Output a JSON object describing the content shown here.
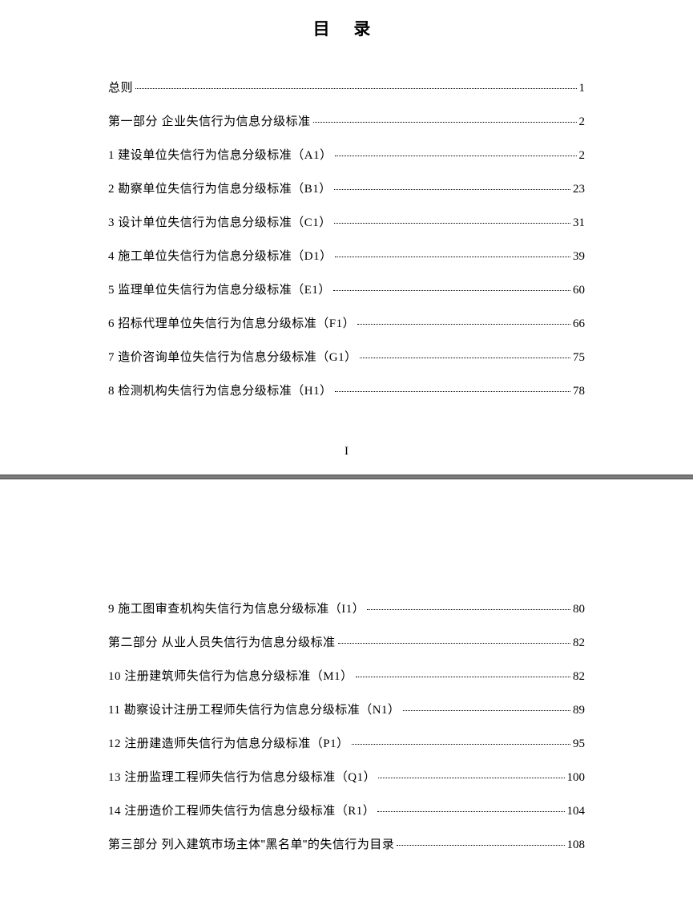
{
  "title": "目 录",
  "page_indicator": "I",
  "colors": {
    "background": "#ffffff",
    "text": "#000000",
    "divider": "#7c7c7c"
  },
  "typography": {
    "title_fontsize": 21,
    "body_fontsize": 15,
    "title_font": "SimHei",
    "body_font": "SimSun"
  },
  "toc_page1": [
    {
      "label": "总则",
      "page": "1",
      "is_section": false
    },
    {
      "label": "第一部分  企业失信行为信息分级标准",
      "page": "2",
      "is_section": true
    },
    {
      "label": "1  建设单位失信行为信息分级标准（A1）",
      "page": "2",
      "is_section": false
    },
    {
      "label": "2  勘察单位失信行为信息分级标准（B1）",
      "page": "23",
      "is_section": false
    },
    {
      "label": "3  设计单位失信行为信息分级标准（C1）",
      "page": "31",
      "is_section": false
    },
    {
      "label": "4  施工单位失信行为信息分级标准（D1）",
      "page": "39",
      "is_section": false
    },
    {
      "label": "5  监理单位失信行为信息分级标准（E1）",
      "page": "60",
      "is_section": false
    },
    {
      "label": "6  招标代理单位失信行为信息分级标准（F1）",
      "page": "66",
      "is_section": false
    },
    {
      "label": "7  造价咨询单位失信行为信息分级标准（G1）",
      "page": "75",
      "is_section": false
    },
    {
      "label": "8  检测机构失信行为信息分级标准（H1）",
      "page": "78",
      "is_section": false
    }
  ],
  "toc_page2": [
    {
      "label": "9  施工图审查机构失信行为信息分级标准（I1）",
      "page": "80",
      "is_section": false
    },
    {
      "label": "第二部分  从业人员失信行为信息分级标准",
      "page": "82",
      "is_section": true
    },
    {
      "label": "10  注册建筑师失信行为信息分级标准（M1）",
      "page": "82",
      "is_section": false
    },
    {
      "label": "11  勘察设计注册工程师失信行为信息分级标准（N1）",
      "page": "89",
      "is_section": false
    },
    {
      "label": "12  注册建造师失信行为信息分级标准（P1）",
      "page": "95",
      "is_section": false
    },
    {
      "label": "13  注册监理工程师失信行为信息分级标准（Q1）",
      "page": "100",
      "is_section": false
    },
    {
      "label": "14  注册造价工程师失信行为信息分级标准（R1）",
      "page": "104",
      "is_section": false
    },
    {
      "label": "第三部分  列入建筑市场主体\"黑名单\"的失信行为目录",
      "page": "108",
      "is_section": true
    }
  ]
}
